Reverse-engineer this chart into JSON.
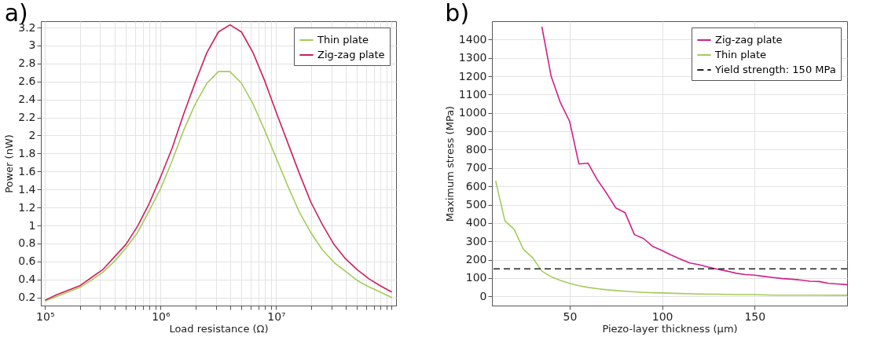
{
  "chart_data": [
    {
      "type": "line",
      "title": "a)",
      "xlabel": "Load resistance (Ω)",
      "ylabel": "Power (nW)",
      "log": "x",
      "grid": true,
      "legend": "top right",
      "line_style": "solid",
      "x": [
        100000,
        125893,
        158489,
        199526,
        251189,
        316228,
        398107,
        501187,
        630957,
        794328,
        1000000,
        1258925,
        1584893,
        1995262,
        2511886,
        3162278,
        3981072,
        5011872,
        6309573,
        7943282,
        10000000,
        12589254,
        15848932,
        19952623,
        25118864,
        31622777,
        39810717,
        50118723,
        63095734,
        79432823,
        100000000
      ],
      "xlim": [
        92000,
        109000000
      ],
      "xticks": [
        {
          "value": 100000,
          "label": "10⁵"
        },
        {
          "value": 200000,
          "label": null
        },
        {
          "value": 300000,
          "label": null
        },
        {
          "value": 400000,
          "label": null
        },
        {
          "value": 500000,
          "label": null
        },
        {
          "value": 600000,
          "label": null
        },
        {
          "value": 700000,
          "label": null
        },
        {
          "value": 800000,
          "label": null
        },
        {
          "value": 900000,
          "label": null
        },
        {
          "value": 1000000,
          "label": "10⁶"
        },
        {
          "value": 2000000,
          "label": null
        },
        {
          "value": 3000000,
          "label": null
        },
        {
          "value": 4000000,
          "label": null
        },
        {
          "value": 5000000,
          "label": null
        },
        {
          "value": 6000000,
          "label": null
        },
        {
          "value": 7000000,
          "label": null
        },
        {
          "value": 8000000,
          "label": null
        },
        {
          "value": 9000000,
          "label": null
        },
        {
          "value": 10000000,
          "label": "10⁷"
        },
        {
          "value": 20000000,
          "label": null
        },
        {
          "value": 30000000,
          "label": null
        },
        {
          "value": 40000000,
          "label": null
        },
        {
          "value": 50000000,
          "label": null
        },
        {
          "value": 60000000,
          "label": null
        },
        {
          "value": 70000000,
          "label": null
        },
        {
          "value": 80000000,
          "label": null
        },
        {
          "value": 90000000,
          "label": null
        },
        {
          "value": 100000000,
          "label": null
        }
      ],
      "ylim": [
        0.11,
        3.27
      ],
      "yticks": [
        0.2,
        0.4,
        0.6,
        0.8,
        1,
        1.2,
        1.4,
        1.6,
        1.8,
        2,
        2.2,
        2.4,
        2.6,
        2.8,
        3,
        3.2
      ],
      "series": [
        {
          "name": "Thin plate",
          "color": "#a4cc5a",
          "values": [
            0.16,
            0.21,
            0.26,
            0.31,
            0.39,
            0.48,
            0.6,
            0.75,
            0.92,
            1.16,
            1.41,
            1.72,
            2.06,
            2.35,
            2.58,
            2.71,
            2.71,
            2.58,
            2.35,
            2.06,
            1.75,
            1.44,
            1.15,
            0.92,
            0.73,
            0.59,
            0.49,
            0.39,
            0.32,
            0.26,
            0.2
          ]
        },
        {
          "name": "Zig-zag plate",
          "color": "#cc1f5c",
          "values": [
            0.17,
            0.23,
            0.28,
            0.33,
            0.42,
            0.51,
            0.65,
            0.79,
            0.99,
            1.24,
            1.54,
            1.86,
            2.24,
            2.59,
            2.92,
            3.15,
            3.23,
            3.15,
            2.92,
            2.61,
            2.26,
            1.92,
            1.58,
            1.26,
            1.01,
            0.79,
            0.63,
            0.51,
            0.41,
            0.33,
            0.26
          ]
        }
      ]
    },
    {
      "type": "line",
      "title": "b)",
      "xlabel": "Piezo-layer thickness (µm)",
      "ylabel": "Maximum stress (MPa)",
      "grid": true,
      "legend": "top right",
      "line_style": "solid",
      "xlim": [
        8,
        200
      ],
      "xticks": [
        50,
        100,
        150
      ],
      "ylim": [
        -50,
        1500
      ],
      "yticks": [
        0,
        100,
        200,
        300,
        400,
        500,
        600,
        700,
        800,
        900,
        1000,
        1100,
        1200,
        1300,
        1400
      ],
      "series": [
        {
          "name": "Zig-zag plate",
          "color": "#d0208a",
          "x": [
            35,
            40,
            45,
            50,
            55,
            60,
            65,
            70,
            75,
            80,
            85,
            90,
            95,
            100,
            105,
            110,
            115,
            120,
            125,
            130,
            135,
            140,
            145,
            150,
            155,
            160,
            165,
            170,
            175,
            180,
            185,
            190,
            195,
            200
          ],
          "values": [
            1470,
            1200,
            1056,
            954,
            722,
            726,
            635,
            562,
            482,
            456,
            337,
            315,
            272,
            250,
            225,
            203,
            182,
            173,
            160,
            148,
            138,
            126,
            119,
            116,
            109,
            103,
            97,
            94,
            89,
            83,
            81,
            71,
            68,
            64
          ]
        },
        {
          "name": "Thin plate",
          "color": "#a4cc5a",
          "x": [
            10,
            15,
            20,
            25,
            30,
            35,
            40,
            45,
            50,
            55,
            60,
            65,
            70,
            75,
            80,
            85,
            90,
            95,
            100,
            110,
            120,
            130,
            140,
            150,
            160,
            180,
            200
          ],
          "values": [
            630,
            412,
            366,
            257,
            211,
            138,
            107,
            87,
            71,
            58,
            49,
            42,
            36,
            32,
            28,
            25,
            22,
            20,
            19,
            16,
            13,
            12,
            10,
            10,
            7,
            7,
            6
          ]
        }
      ],
      "ref_lines": [
        {
          "axis": "y",
          "value": 150,
          "label": "Yield strength: 150 MPa",
          "color": "#222222",
          "line_style": "dashed"
        }
      ]
    }
  ]
}
